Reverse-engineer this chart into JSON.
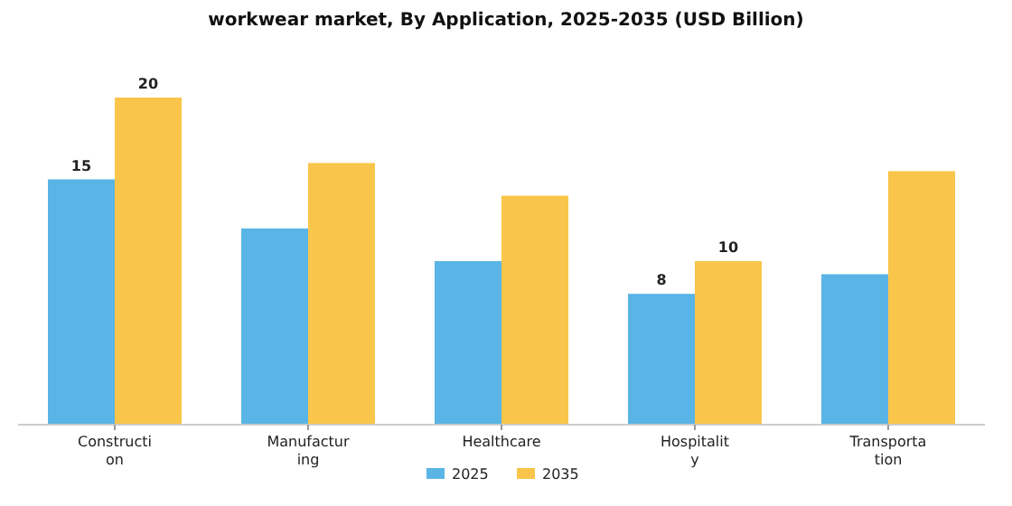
{
  "chart_data": {
    "type": "bar",
    "title": "workwear market, By Application, 2025-2035 (USD Billion)",
    "categories": [
      "Construction",
      "Manufacturing",
      "Healthcare",
      "Hospitality",
      "Transportation"
    ],
    "series": [
      {
        "name": "2025",
        "color": "#5ab4e5",
        "values": [
          15,
          12,
          10,
          8,
          9.2
        ],
        "value_labels": [
          "15",
          null,
          null,
          "8",
          null
        ]
      },
      {
        "name": "2035",
        "color": "#f9c54a",
        "values": [
          20,
          16,
          14,
          10,
          15.5
        ],
        "value_labels": [
          "20",
          null,
          null,
          "10",
          null
        ]
      }
    ],
    "legend": "bottom"
  }
}
